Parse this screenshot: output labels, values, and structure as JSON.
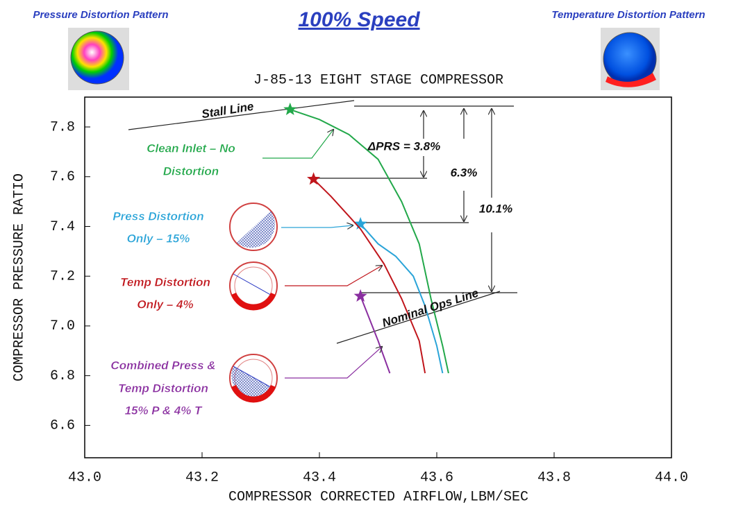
{
  "chart_data": {
    "type": "line",
    "header": {
      "left": "Pressure Distortion Pattern",
      "center": "100% Speed",
      "right": "Temperature Distortion Pattern"
    },
    "title": "J-85-13 EIGHT STAGE COMPRESSOR",
    "x_label": "COMPRESSOR CORRECTED AIRFLOW,LBM/SEC",
    "y_label": "COMPRESSOR PRESSURE RATIO",
    "xlim": [
      43.0,
      44.0
    ],
    "ylim": [
      6.47,
      7.92
    ],
    "xticks": [
      {
        "value": 43.0,
        "label": "43.0"
      },
      {
        "value": 43.2,
        "label": "43.2"
      },
      {
        "value": 43.4,
        "label": "43.4"
      },
      {
        "value": 43.6,
        "label": "43.6"
      },
      {
        "value": 43.8,
        "label": "43.8"
      },
      {
        "value": 44.0,
        "label": "44.0"
      }
    ],
    "yticks": [
      6.6,
      6.8,
      {
        "value": 7.0,
        "label": "7.0"
      },
      7.2,
      7.4,
      7.6,
      7.8
    ],
    "series": [
      {
        "color": "#22a84a",
        "x": [
          43.35,
          43.4,
          43.45,
          43.5,
          43.54,
          43.57,
          43.59,
          43.61,
          43.62
        ],
        "values": [
          7.87,
          7.83,
          7.77,
          7.67,
          7.5,
          7.33,
          7.11,
          6.92,
          6.81
        ],
        "label_lines": [
          "Clean Inlet – No",
          "Distortion"
        ]
      },
      {
        "color": "#2aa4d8",
        "x": [
          43.47,
          43.5,
          43.53,
          43.56,
          43.58,
          43.6,
          43.61
        ],
        "values": [
          7.41,
          7.33,
          7.28,
          7.2,
          7.08,
          6.92,
          6.81
        ],
        "label_lines": [
          "Press Distortion",
          "Only – 15%"
        ]
      },
      {
        "color": "#c0151b",
        "x": [
          43.39,
          43.42,
          43.47,
          43.51,
          43.54,
          43.57,
          43.58
        ],
        "values": [
          7.59,
          7.52,
          7.39,
          7.25,
          7.11,
          6.94,
          6.81
        ],
        "label_lines": [
          "Temp Distortion",
          "Only – 4%"
        ]
      },
      {
        "color": "#8a2fa0",
        "x": [
          43.47,
          43.48,
          43.5,
          43.52
        ],
        "values": [
          7.12,
          7.06,
          6.94,
          6.81
        ],
        "label_lines": [
          "Combined Press &",
          "Temp Distortion",
          "15% P & 4% T"
        ]
      }
    ],
    "annotations": [
      "Stall Line",
      "ΔPRS = 3.8%",
      "6.3%",
      "10.1%",
      "Nominal Ops Line"
    ]
  }
}
